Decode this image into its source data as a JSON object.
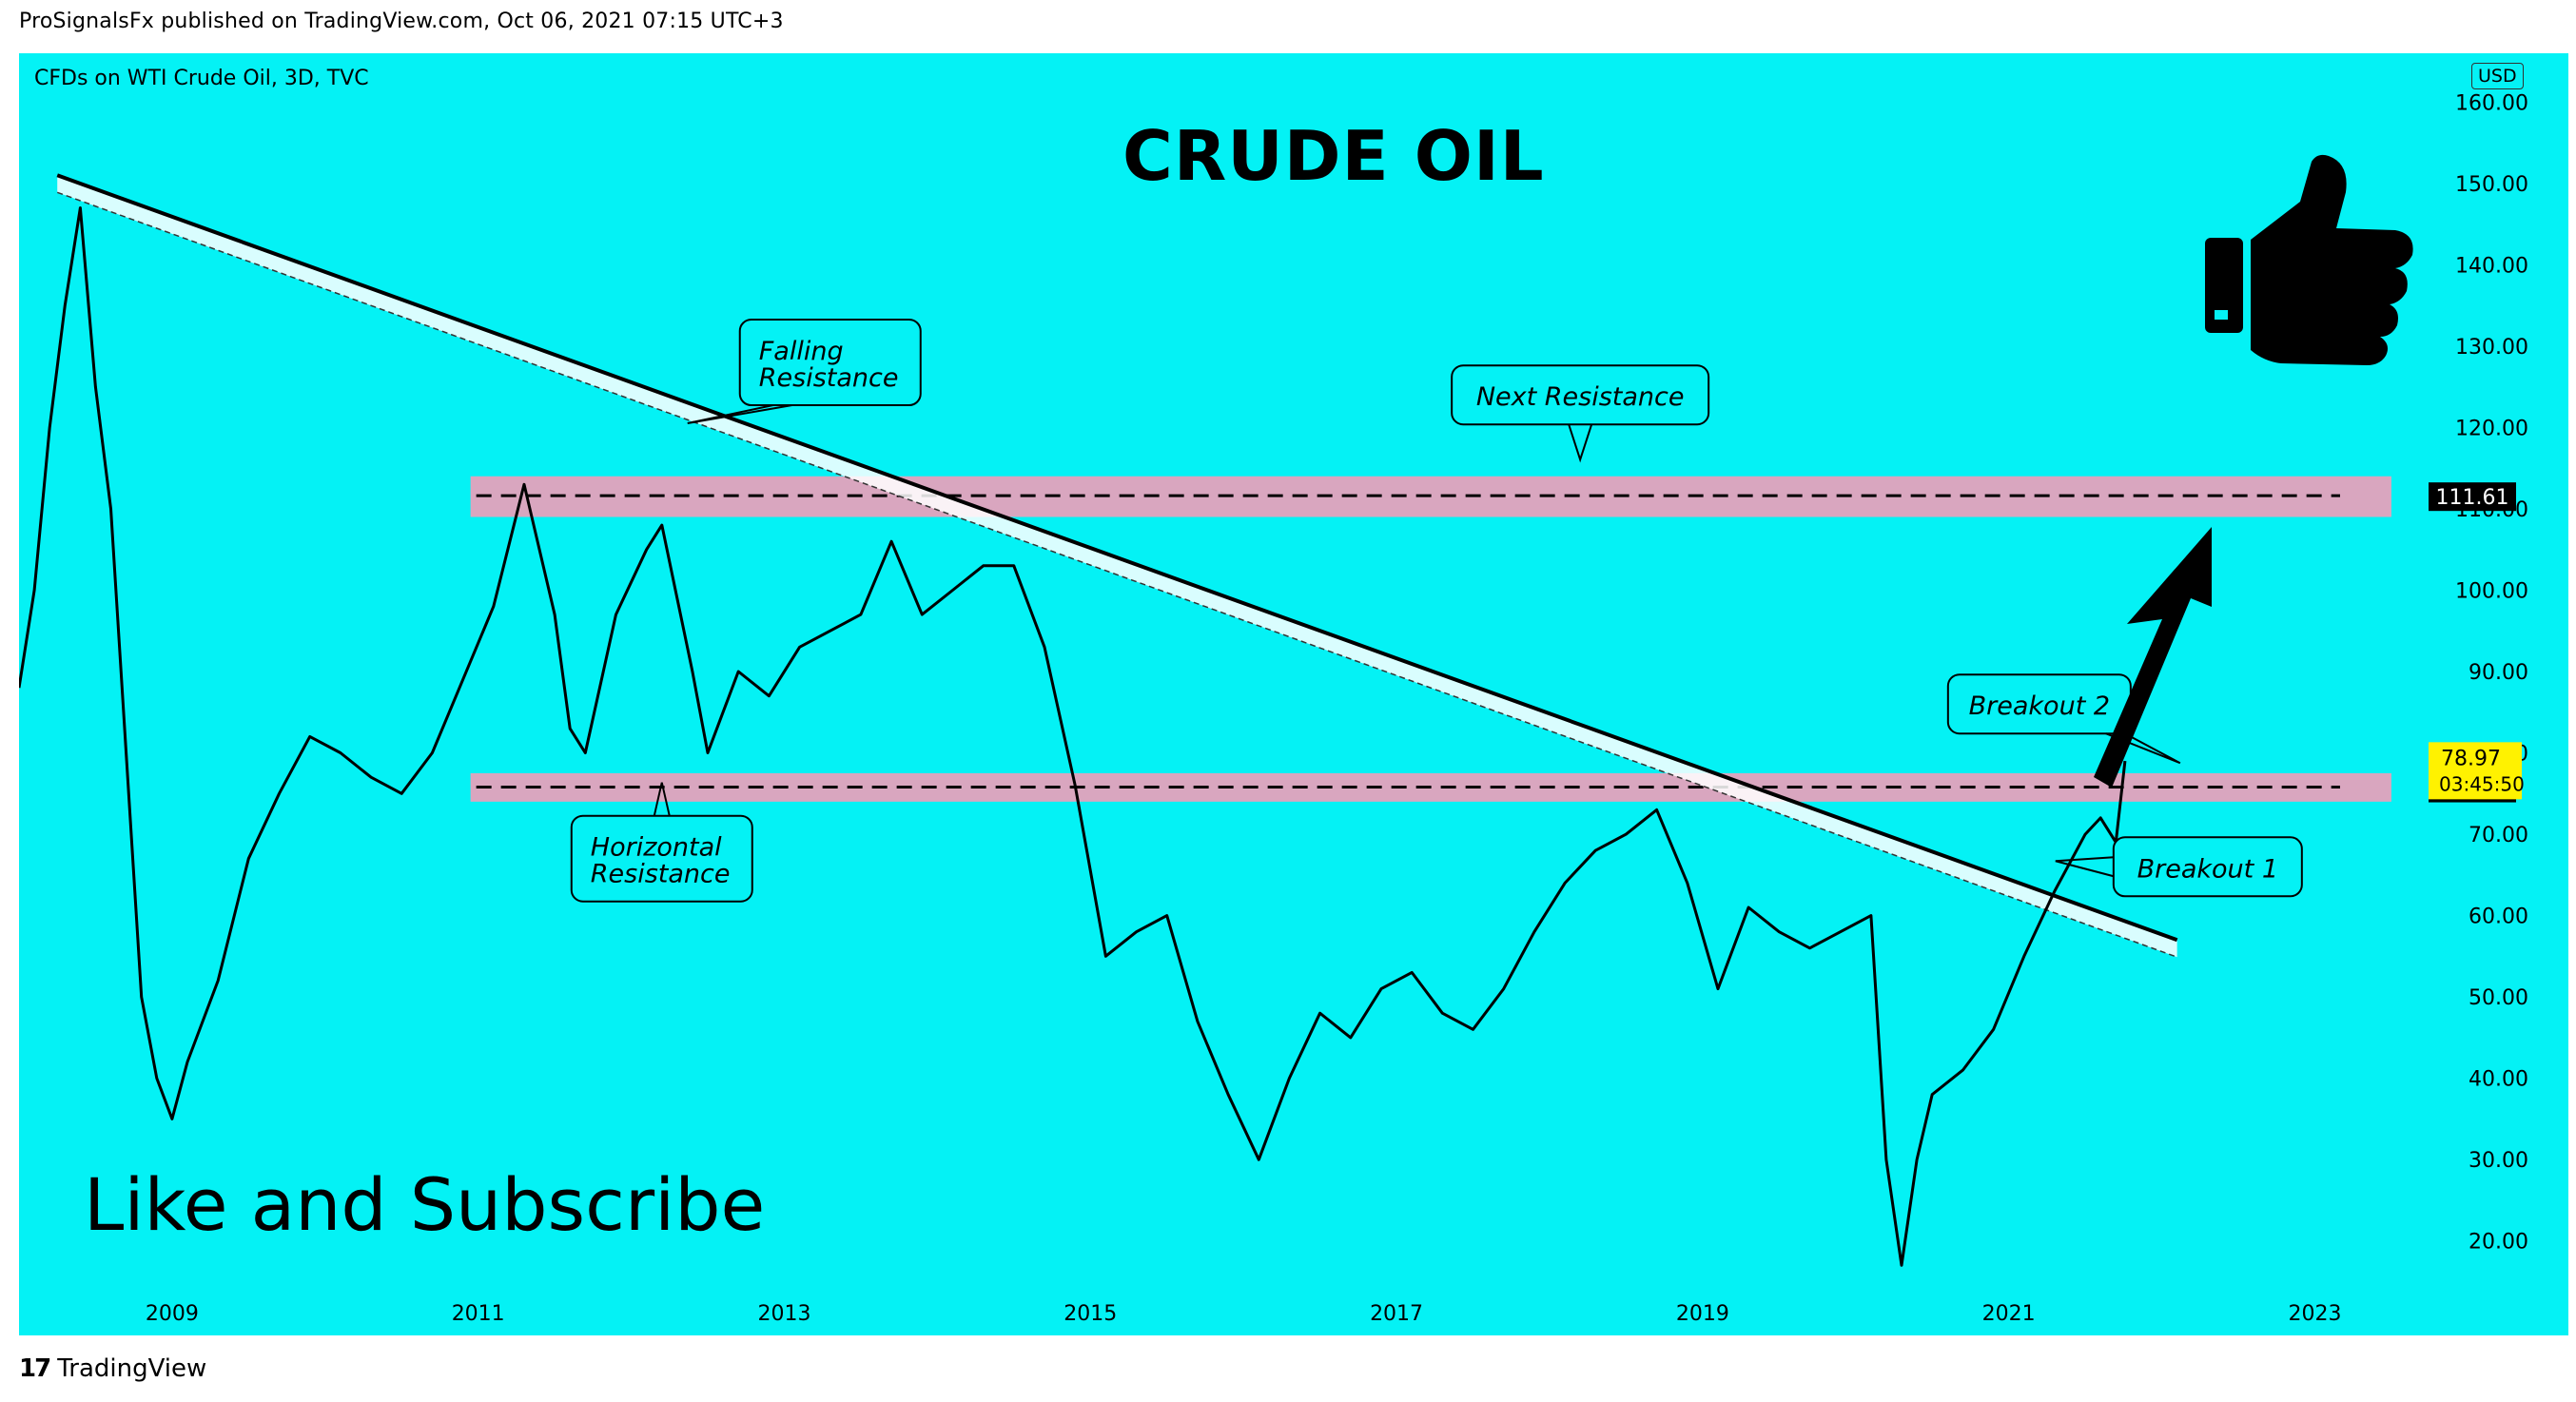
{
  "header": {
    "published": "ProSignalsFx published on TradingView.com, Oct 06, 2021 07:15 UTC+3"
  },
  "chart_header": {
    "symbol": "CFDs on WTI Crude Oil, 3D, TVC",
    "currency": "USD"
  },
  "overlay": {
    "title": "CRUDE OIL",
    "cta": "Like and Subscribe",
    "thumbs_up": "thumbs-up-icon",
    "arrow": "arrow-up-right-icon"
  },
  "footer": {
    "logo": "17",
    "brand": "TradingView"
  },
  "colors": {
    "background": "#04f2f5",
    "zone": "#d9a6bf",
    "line": "#000000",
    "price_tag": "#fff200"
  },
  "chart_data": {
    "type": "line",
    "title": "CRUDE OIL",
    "xlabel": "",
    "ylabel": "",
    "xlim": [
      2008.0,
      2023.6
    ],
    "ylim": [
      14,
      166
    ],
    "x_ticks": [
      2009,
      2011,
      2013,
      2015,
      2017,
      2019,
      2021,
      2023
    ],
    "y_ticks": [
      20,
      30,
      40,
      50,
      60,
      70,
      80,
      90,
      100,
      110,
      120,
      130,
      140,
      150,
      160
    ],
    "series": [
      {
        "x": [
          2008.0,
          2008.1,
          2008.2,
          2008.3,
          2008.4,
          2008.5,
          2008.6,
          2008.7,
          2008.8,
          2008.9,
          2009.0,
          2009.1,
          2009.3,
          2009.5,
          2009.7,
          2009.9,
          2010.1,
          2010.3,
          2010.5,
          2010.7,
          2010.9,
          2011.1,
          2011.3,
          2011.5,
          2011.6,
          2011.7,
          2011.9,
          2012.1,
          2012.2,
          2012.4,
          2012.5,
          2012.7,
          2012.9,
          2013.1,
          2013.3,
          2013.5,
          2013.7,
          2013.9,
          2014.1,
          2014.3,
          2014.5,
          2014.7,
          2014.9,
          2015.1,
          2015.3,
          2015.5,
          2015.7,
          2015.9,
          2016.1,
          2016.3,
          2016.5,
          2016.7,
          2016.9,
          2017.1,
          2017.3,
          2017.5,
          2017.7,
          2017.9,
          2018.1,
          2018.3,
          2018.5,
          2018.7,
          2018.9,
          2019.1,
          2019.3,
          2019.5,
          2019.7,
          2019.9,
          2020.1,
          2020.2,
          2020.3,
          2020.4,
          2020.5,
          2020.7,
          2020.9,
          2021.1,
          2021.3,
          2021.5,
          2021.6,
          2021.7,
          2021.76
        ],
        "y": [
          88,
          100,
          120,
          135,
          147,
          125,
          110,
          80,
          50,
          40,
          35,
          42,
          52,
          67,
          75,
          82,
          80,
          77,
          75,
          80,
          89,
          98,
          113,
          97,
          83,
          80,
          97,
          105,
          108,
          90,
          80,
          90,
          87,
          93,
          95,
          97,
          106,
          97,
          100,
          103,
          103,
          93,
          76,
          55,
          58,
          60,
          47,
          38,
          30,
          40,
          48,
          45,
          51,
          53,
          48,
          46,
          51,
          58,
          64,
          68,
          70,
          73,
          64,
          51,
          61,
          58,
          56,
          58,
          60,
          30,
          17,
          30,
          38,
          41,
          46,
          55,
          63,
          70,
          72,
          69,
          79
        ]
      }
    ],
    "zones": [
      {
        "name": "Next Resistance",
        "y_low": 109,
        "y_high": 114,
        "x_start": 2010.95,
        "x_end": 2023.5
      },
      {
        "name": "Horizontal Resistance",
        "y_low": 74,
        "y_high": 77.5,
        "x_start": 2010.95,
        "x_end": 2023.5
      }
    ],
    "levels": [
      {
        "label": "111.61",
        "value": 111.61
      },
      {
        "label": "75.79",
        "value": 75.79
      }
    ],
    "trendline": {
      "name": "Falling Resistance",
      "points": [
        [
          2008.25,
          151
        ],
        [
          2022.1,
          57
        ]
      ]
    },
    "current_price": {
      "label": "78.97",
      "countdown": "03:45:50",
      "value": 78.97
    },
    "annotations": [
      {
        "text": "Falling Resistance",
        "x": 2013.3,
        "y": 128
      },
      {
        "text": "Next Resistance",
        "x": 2018.2,
        "y": 124
      },
      {
        "text": "Horizontal Resistance",
        "x": 2012.2,
        "y": 67
      },
      {
        "text": "Breakout 2",
        "x": 2021.2,
        "y": 86
      },
      {
        "text": "Breakout 1",
        "x": 2022.3,
        "y": 66
      }
    ]
  }
}
